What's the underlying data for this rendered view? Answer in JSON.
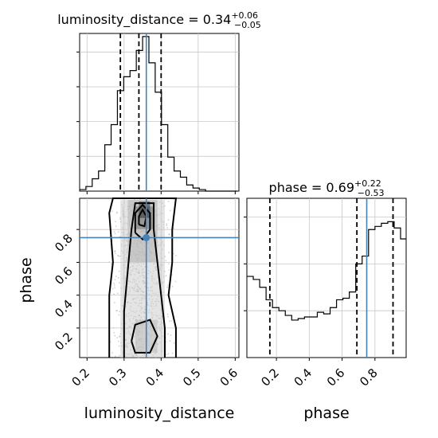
{
  "chart_data": {
    "type": "corner",
    "parameters": [
      "luminosity_distance",
      "phase"
    ],
    "truth": {
      "luminosity_distance": 0.36,
      "phase": 0.75
    },
    "truth_color": "#4682b4",
    "grid": true,
    "panels": [
      {
        "type": "histogram",
        "parameter": "luminosity_distance",
        "title_name": "luminosity_distance",
        "title_value": "0.34",
        "title_plus": "+0.06",
        "title_minus": "−0.05",
        "xlim": [
          0.18,
          0.61
        ],
        "ylim": [
          0,
          1.02
        ],
        "quantiles": [
          0.29,
          0.34,
          0.4
        ],
        "bins": [
          0.18,
          0.197,
          0.214,
          0.231,
          0.248,
          0.265,
          0.282,
          0.299,
          0.316,
          0.333,
          0.35,
          0.367,
          0.384,
          0.401,
          0.418,
          0.435,
          0.452,
          0.469,
          0.486,
          0.503,
          0.52,
          0.537,
          0.554,
          0.571,
          0.588,
          0.605
        ],
        "counts": [
          0.01,
          0.03,
          0.08,
          0.13,
          0.3,
          0.43,
          0.65,
          0.74,
          0.78,
          0.91,
          1.0,
          0.83,
          0.64,
          0.43,
          0.22,
          0.13,
          0.09,
          0.04,
          0.02,
          0.01,
          0.0,
          0.0,
          0.0,
          0.0,
          0.0
        ]
      },
      {
        "type": "2d",
        "x": "luminosity_distance",
        "y": "phase",
        "xlim": [
          0.18,
          0.61
        ],
        "ylim": [
          0.02,
          0.99
        ],
        "xticks": [
          "0.2",
          "0.3",
          "0.4",
          "0.5",
          "0.6"
        ],
        "yticks": [
          "0.2",
          "0.4",
          "0.6",
          "0.8"
        ],
        "xtick_values": [
          0.2,
          0.3,
          0.4,
          0.5,
          0.6
        ],
        "ytick_values": [
          0.2,
          0.4,
          0.6,
          0.8
        ],
        "xlabel": "luminosity_distance",
        "ylabel": "phase",
        "contours": [
          [
            [
              0.26,
              0.02
            ],
            [
              0.26,
              0.4
            ],
            [
              0.27,
              0.6
            ],
            [
              0.26,
              0.9
            ],
            [
              0.27,
              0.99
            ],
            [
              0.44,
              0.99
            ],
            [
              0.43,
              0.8
            ],
            [
              0.43,
              0.6
            ],
            [
              0.42,
              0.4
            ],
            [
              0.44,
              0.2
            ],
            [
              0.44,
              0.02
            ]
          ],
          [
            [
              0.3,
              0.02
            ],
            [
              0.3,
              0.3
            ],
            [
              0.31,
              0.55
            ],
            [
              0.32,
              0.8
            ],
            [
              0.33,
              0.96
            ],
            [
              0.38,
              0.96
            ],
            [
              0.38,
              0.8
            ],
            [
              0.39,
              0.6
            ],
            [
              0.4,
              0.4
            ],
            [
              0.41,
              0.2
            ],
            [
              0.41,
              0.02
            ]
          ],
          [
            [
              0.33,
              0.78
            ],
            [
              0.35,
              0.74
            ],
            [
              0.37,
              0.8
            ],
            [
              0.37,
              0.9
            ],
            [
              0.35,
              0.95
            ],
            [
              0.33,
              0.9
            ],
            [
              0.33,
              0.78
            ]
          ],
          [
            [
              0.34,
              0.83
            ],
            [
              0.355,
              0.82
            ],
            [
              0.36,
              0.88
            ],
            [
              0.35,
              0.92
            ],
            [
              0.34,
              0.88
            ],
            [
              0.34,
              0.83
            ]
          ],
          [
            [
              0.32,
              0.12
            ],
            [
              0.33,
              0.05
            ],
            [
              0.37,
              0.05
            ],
            [
              0.39,
              0.15
            ],
            [
              0.37,
              0.25
            ],
            [
              0.33,
              0.22
            ],
            [
              0.32,
              0.12
            ]
          ]
        ],
        "density_cells": [
          {
            "x": 0.34,
            "y": 0.87,
            "w": 0.03,
            "h": 0.1,
            "level": 0.95
          },
          {
            "x": 0.33,
            "y": 0.8,
            "w": 0.05,
            "h": 0.14,
            "level": 0.6
          },
          {
            "x": 0.31,
            "y": 0.6,
            "w": 0.08,
            "h": 0.38,
            "level": 0.3
          },
          {
            "x": 0.29,
            "y": 0.02,
            "w": 0.12,
            "h": 0.96,
            "level": 0.15
          },
          {
            "x": 0.33,
            "y": 0.05,
            "w": 0.06,
            "h": 0.2,
            "level": 0.35
          }
        ]
      },
      {
        "type": "histogram",
        "parameter": "phase",
        "title_name": "phase",
        "title_value": "0.69",
        "title_plus": "+0.22",
        "title_minus": "−0.53",
        "xlim": [
          0.02,
          0.99
        ],
        "ylim": [
          0,
          1.02
        ],
        "quantiles": [
          0.16,
          0.69,
          0.91
        ],
        "xticks": [
          "0.2",
          "0.4",
          "0.6",
          "0.8"
        ],
        "xtick_values": [
          0.2,
          0.4,
          0.6,
          0.8
        ],
        "xlabel": "phase",
        "bins": [
          0.02,
          0.059,
          0.098,
          0.137,
          0.176,
          0.215,
          0.254,
          0.293,
          0.332,
          0.371,
          0.41,
          0.449,
          0.488,
          0.527,
          0.566,
          0.605,
          0.644,
          0.683,
          0.722,
          0.761,
          0.8,
          0.839,
          0.878,
          0.917,
          0.956,
          0.99
        ],
        "counts": [
          0.52,
          0.5,
          0.45,
          0.37,
          0.32,
          0.3,
          0.27,
          0.24,
          0.25,
          0.26,
          0.26,
          0.29,
          0.28,
          0.32,
          0.37,
          0.38,
          0.42,
          0.6,
          0.65,
          0.82,
          0.84,
          0.86,
          0.87,
          0.83,
          0.76
        ]
      }
    ]
  }
}
